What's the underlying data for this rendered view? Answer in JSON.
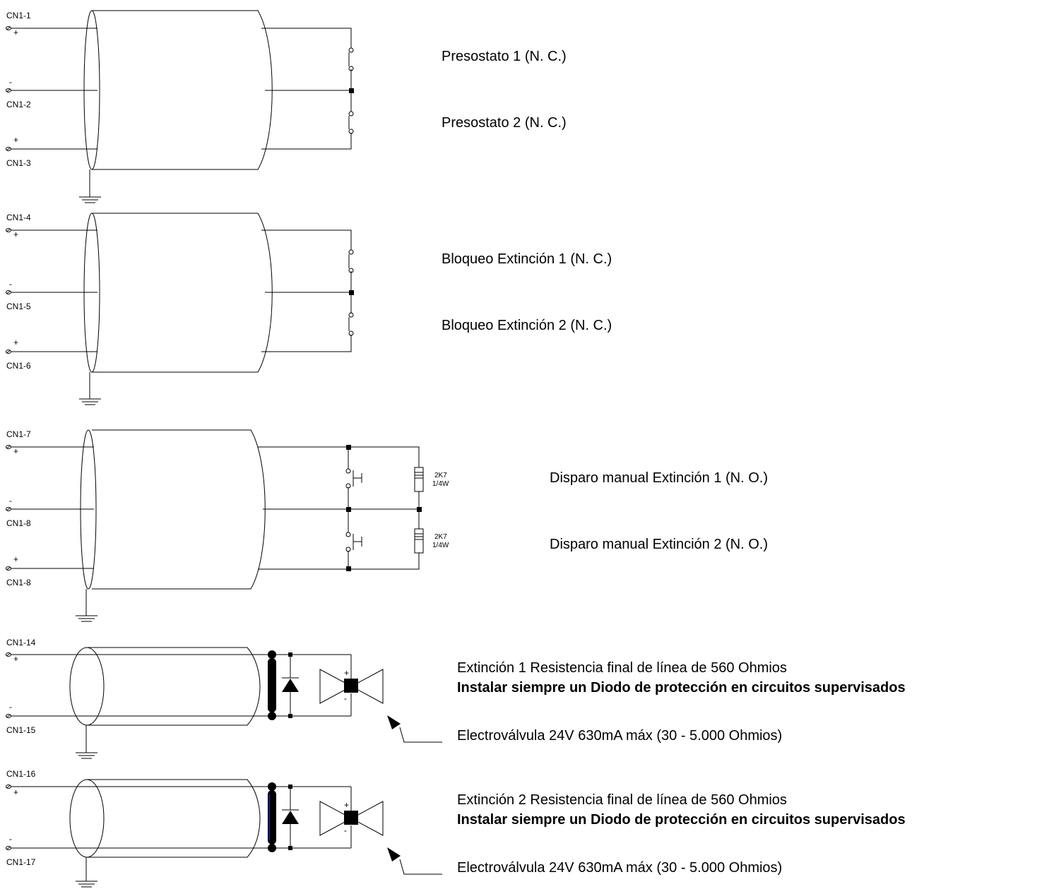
{
  "pins": {
    "cn1_1": "CN1-1",
    "cn1_2": "CN1-2",
    "cn1_3": "CN1-3",
    "cn1_4": "CN1-4",
    "cn1_5": "CN1-5",
    "cn1_6": "CN1-6",
    "cn1_7": "CN1-7",
    "cn1_8a": "CN1-8",
    "cn1_8b": "CN1-8",
    "cn1_14": "CN1-14",
    "cn1_15": "CN1-15",
    "cn1_16": "CN1-16",
    "cn1_17": "CN1-17"
  },
  "polarity": {
    "plus": "+",
    "minus": "-"
  },
  "resistor": {
    "value": "2K7",
    "power": "1/4W"
  },
  "labels": {
    "presostato_1": "Presostato 1 (N. C.)",
    "presostato_2": "Presostato 2 (N. C.)",
    "bloqueo_1": "Bloqueo Extinción 1 (N. C.)",
    "bloqueo_2": "Bloqueo Extinción 2 (N. C.)",
    "disparo_1": "Disparo manual Extinción 1 (N. O.)",
    "disparo_2": "Disparo manual Extinción 2 (N. O.)",
    "extincion_1": "Extinción 1 Resistencia final de línea de 560 Ohmios",
    "extincion_2": "Extinción 2 Resistencia final de línea de 560 Ohmios",
    "diodo_note_1": "Instalar siempre un Diodo de protección en circuitos supervisados",
    "diodo_note_2": "Instalar siempre un Diodo de protección en circuitos supervisados",
    "valvula_1": "Electroválvula 24V 630mA máx (30 - 5.000 Ohmios)",
    "valvula_2": "Electroválvula 24V 630mA máx (30 - 5.000 Ohmios)"
  },
  "colors": {
    "line": "#000000",
    "background": "#ffffff",
    "accent_blue": "#1a1a8a"
  }
}
